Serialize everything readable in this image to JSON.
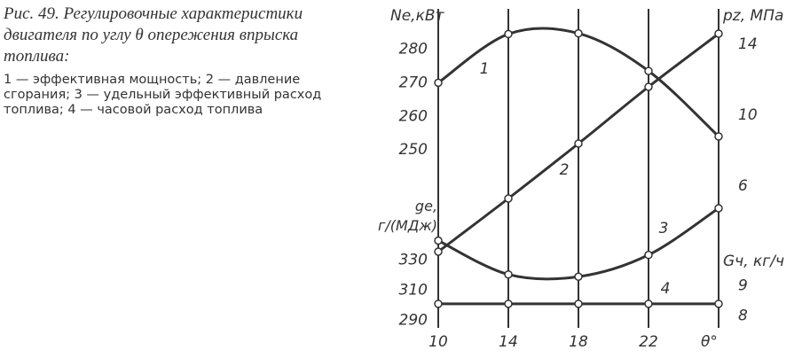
{
  "figure": {
    "title": "Рис. 49. Регулировочные характеристики двигателя по углу θ опережения впрыска топлива:",
    "legend": "1 — эффективная мощность; 2 — давление сгорания; 3 — удельный эффективный расход топлива; 4 — часовой расход топлива"
  },
  "chart_data": {
    "type": "line",
    "x": [
      10,
      14,
      18,
      22,
      26
    ],
    "xlim": [
      10,
      26
    ],
    "xticks": [
      10,
      14,
      18,
      22
    ],
    "xlabel": "θ°",
    "ylabel": "Ne,кВт",
    "ylim": [
      197,
      292
    ],
    "yticks": [
      250,
      260,
      270,
      280
    ],
    "y2label": "pz, МПа",
    "y2lim": [
      -2,
      16
    ],
    "y2ticks": [
      6,
      10,
      14
    ],
    "y3label": "gе, г/(МДж)",
    "y3lim": [
      285,
      497
    ],
    "y3ticks": [
      290,
      310,
      330
    ],
    "y4label": "Gч, кг/ч",
    "y4lim": [
      7.6,
      18.2
    ],
    "y4ticks": [
      8,
      9
    ],
    "grid": true,
    "series": [
      {
        "name": "1",
        "axis": "y",
        "color": "#333333",
        "values": [
          270,
          284.5,
          284.7,
          273.5,
          254
        ]
      },
      {
        "name": "2",
        "axis": "y2",
        "color": "#333333",
        "values": [
          2.3,
          5.3,
          8.4,
          11.6,
          14.6
        ]
      },
      {
        "name": "3",
        "axis": "y3",
        "color": "#333333",
        "values": [
          343,
          320.5,
          319,
          333.5,
          364.5
        ]
      },
      {
        "name": "4",
        "axis": "y4",
        "color": "#333333",
        "values": [
          8.4,
          8.4,
          8.4,
          8.4,
          8.4
        ]
      }
    ]
  }
}
